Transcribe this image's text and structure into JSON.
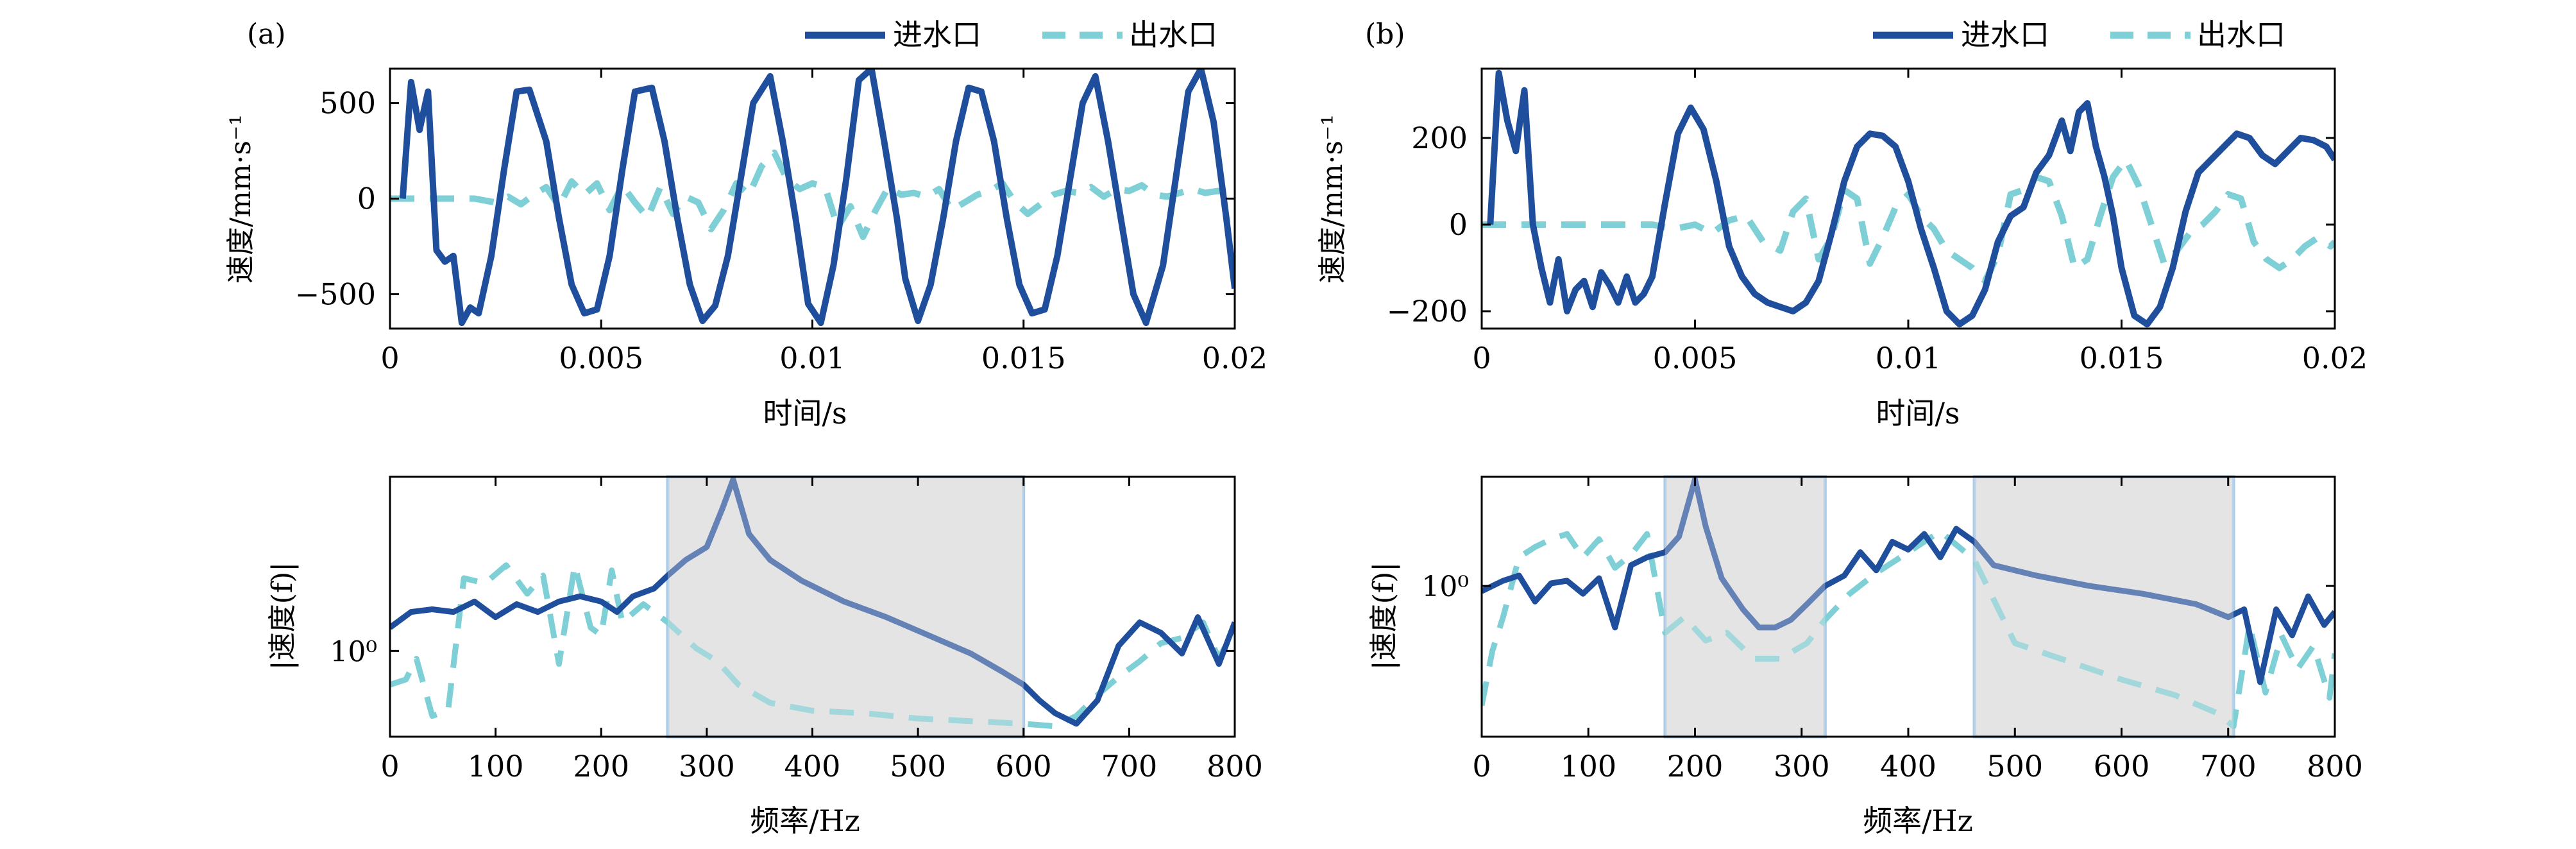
{
  "colors": {
    "inlet": "#1f4e9c",
    "outlet": "#7ecfd6",
    "shade": "#e4e4e4",
    "shade_edge": "#a9cbe9",
    "axes": "#000000"
  },
  "chart_data": [
    {
      "panel_label": "(a)",
      "type": "line",
      "xlabel": "时间/s",
      "ylabel": "速度/mm·s⁻¹",
      "xlim": [
        0,
        0.02
      ],
      "ylim": [
        -680,
        680
      ],
      "xticks": [
        0,
        0.005,
        0.01,
        0.015,
        0.02
      ],
      "xtick_labels": [
        "0",
        "0.005",
        "0.01",
        "0.015",
        "0.02"
      ],
      "yticks": [
        -500,
        0,
        500
      ],
      "ytick_labels": [
        "−500",
        "0",
        "500"
      ],
      "legend": {
        "placement": "top-right",
        "entries": [
          "进水口",
          "出水口"
        ]
      },
      "series": [
        {
          "name": "进水口",
          "style": "solid",
          "x": [
            0.0003,
            0.0005,
            0.0007,
            0.0009,
            0.0011,
            0.0013,
            0.0015,
            0.0017,
            0.0019,
            0.0021,
            0.0024,
            0.0027,
            0.003,
            0.0033,
            0.0037,
            0.004,
            0.0043,
            0.0046,
            0.0049,
            0.0052,
            0.0055,
            0.0058,
            0.0062,
            0.0065,
            0.0068,
            0.0071,
            0.0074,
            0.0077,
            0.008,
            0.0083,
            0.0086,
            0.009,
            0.0093,
            0.0096,
            0.0099,
            0.0102,
            0.0105,
            0.0108,
            0.0111,
            0.0114,
            0.0117,
            0.012,
            0.0122,
            0.0125,
            0.0128,
            0.0131,
            0.0134,
            0.0137,
            0.014,
            0.0143,
            0.0146,
            0.0149,
            0.0152,
            0.0155,
            0.0158,
            0.0161,
            0.0164,
            0.0167,
            0.017,
            0.0173,
            0.0176,
            0.0179,
            0.0183,
            0.0186,
            0.0189,
            0.0192,
            0.0195,
            0.0198,
            0.02
          ],
          "y": [
            0,
            610,
            360,
            560,
            -270,
            -330,
            -300,
            -650,
            -570,
            -600,
            -300,
            150,
            560,
            570,
            300,
            -100,
            -450,
            -600,
            -580,
            -300,
            150,
            560,
            580,
            300,
            -100,
            -450,
            -640,
            -560,
            -300,
            100,
            500,
            640,
            300,
            -100,
            -550,
            -650,
            -350,
            100,
            620,
            680,
            300,
            -100,
            -420,
            -640,
            -450,
            -100,
            300,
            580,
            560,
            300,
            -100,
            -450,
            -600,
            -580,
            -300,
            100,
            500,
            640,
            300,
            -100,
            -500,
            -650,
            -350,
            100,
            560,
            680,
            400,
            -100,
            -470
          ]
        },
        {
          "name": "出水口",
          "style": "dashed",
          "x": [
            0,
            0.001,
            0.002,
            0.0025,
            0.0028,
            0.0031,
            0.0034,
            0.0037,
            0.004,
            0.0043,
            0.0046,
            0.0049,
            0.0052,
            0.0055,
            0.0058,
            0.0061,
            0.0064,
            0.0067,
            0.007,
            0.0073,
            0.0076,
            0.0079,
            0.0082,
            0.0085,
            0.0088,
            0.0091,
            0.0094,
            0.0097,
            0.01,
            0.0103,
            0.0106,
            0.0109,
            0.0112,
            0.0115,
            0.0118,
            0.0121,
            0.0124,
            0.0127,
            0.013,
            0.0133,
            0.0136,
            0.0139,
            0.0142,
            0.0145,
            0.0148,
            0.0151,
            0.0154,
            0.0157,
            0.016,
            0.0163,
            0.0166,
            0.0169,
            0.0172,
            0.0175,
            0.0178,
            0.0181,
            0.0184,
            0.0187,
            0.019,
            0.0193,
            0.0196,
            0.02
          ],
          "y": [
            0,
            0,
            0,
            -20,
            10,
            -30,
            20,
            60,
            -40,
            90,
            20,
            80,
            -60,
            70,
            -20,
            -100,
            60,
            -80,
            10,
            -20,
            -160,
            -60,
            80,
            20,
            170,
            240,
            100,
            50,
            80,
            60,
            -150,
            -40,
            -200,
            -60,
            60,
            20,
            30,
            10,
            50,
            -60,
            -20,
            20,
            40,
            80,
            -20,
            -80,
            -30,
            20,
            40,
            30,
            60,
            10,
            50,
            40,
            70,
            20,
            10,
            30,
            50,
            30,
            40,
            30
          ]
        }
      ]
    },
    {
      "panel_label": "",
      "type": "line",
      "xlabel": "频率/Hz",
      "ylabel": "|速度(f)|",
      "xlim": [
        0,
        800
      ],
      "ylim": [
        0,
        1
      ],
      "xticks": [
        0,
        100,
        200,
        300,
        400,
        500,
        600,
        700,
        800
      ],
      "xtick_labels": [
        "0",
        "100",
        "200",
        "300",
        "400",
        "500",
        "600",
        "700",
        "800"
      ],
      "ytick_labels": [
        "10⁰"
      ],
      "ytick_positions": [
        0.33
      ],
      "shaded_ranges": [
        [
          263,
          600
        ]
      ],
      "series": [
        {
          "name": "进水口",
          "style": "solid",
          "x": [
            0,
            20,
            40,
            60,
            80,
            100,
            120,
            140,
            160,
            180,
            200,
            215,
            230,
            250,
            263,
            280,
            300,
            315,
            325,
            340,
            360,
            390,
            430,
            470,
            510,
            550,
            580,
            600,
            615,
            630,
            650,
            670,
            690,
            710,
            730,
            750,
            765,
            785,
            800
          ],
          "y": [
            0.42,
            0.48,
            0.49,
            0.48,
            0.52,
            0.46,
            0.51,
            0.48,
            0.52,
            0.54,
            0.52,
            0.48,
            0.54,
            0.57,
            0.62,
            0.68,
            0.73,
            0.88,
            0.99,
            0.78,
            0.68,
            0.6,
            0.52,
            0.46,
            0.39,
            0.32,
            0.25,
            0.2,
            0.14,
            0.09,
            0.05,
            0.14,
            0.35,
            0.44,
            0.4,
            0.32,
            0.46,
            0.28,
            0.44
          ]
        },
        {
          "name": "出水口",
          "style": "dashed",
          "x": [
            0,
            15,
            25,
            40,
            55,
            70,
            90,
            110,
            130,
            145,
            160,
            175,
            190,
            200,
            210,
            220,
            240,
            263,
            290,
            310,
            330,
            360,
            400,
            450,
            500,
            550,
            600,
            630,
            650,
            670,
            690,
            710,
            730,
            750,
            770,
            785,
            800
          ],
          "y": [
            0.2,
            0.22,
            0.3,
            0.08,
            0.1,
            0.61,
            0.59,
            0.66,
            0.55,
            0.62,
            0.28,
            0.66,
            0.42,
            0.39,
            0.64,
            0.44,
            0.51,
            0.44,
            0.34,
            0.29,
            0.2,
            0.13,
            0.1,
            0.09,
            0.07,
            0.06,
            0.05,
            0.04,
            0.08,
            0.16,
            0.23,
            0.29,
            0.36,
            0.38,
            0.44,
            0.3,
            0.42
          ]
        }
      ]
    },
    {
      "panel_label": "(b)",
      "type": "line",
      "xlabel": "时间/s",
      "ylabel": "速度/mm·s⁻¹",
      "xlim": [
        0,
        0.02
      ],
      "ylim": [
        -240,
        360
      ],
      "xticks": [
        0,
        0.005,
        0.01,
        0.015,
        0.02
      ],
      "xtick_labels": [
        "0",
        "0.005",
        "0.01",
        "0.015",
        "0.02"
      ],
      "yticks": [
        -200,
        0,
        200
      ],
      "ytick_labels": [
        "−200",
        "0",
        "200"
      ],
      "legend": {
        "placement": "top-right",
        "entries": [
          "进水口",
          "出水口"
        ]
      },
      "series": [
        {
          "name": "进水口",
          "style": "solid",
          "x": [
            0.0002,
            0.0004,
            0.0006,
            0.0008,
            0.001,
            0.0012,
            0.0014,
            0.0016,
            0.0018,
            0.002,
            0.0022,
            0.0024,
            0.0026,
            0.0028,
            0.003,
            0.0032,
            0.0034,
            0.0036,
            0.0038,
            0.004,
            0.0043,
            0.0046,
            0.0049,
            0.0052,
            0.0055,
            0.0058,
            0.0061,
            0.0064,
            0.0067,
            0.007,
            0.0073,
            0.0076,
            0.0079,
            0.0082,
            0.0085,
            0.0088,
            0.0091,
            0.0094,
            0.0097,
            0.01,
            0.0103,
            0.0106,
            0.0109,
            0.0112,
            0.0115,
            0.0118,
            0.0121,
            0.0124,
            0.0127,
            0.013,
            0.0133,
            0.0136,
            0.0138,
            0.014,
            0.0142,
            0.0144,
            0.0146,
            0.0148,
            0.015,
            0.0153,
            0.0156,
            0.0159,
            0.0162,
            0.0165,
            0.0168,
            0.0171,
            0.0174,
            0.0177,
            0.018,
            0.0183,
            0.0186,
            0.0189,
            0.0192,
            0.0195,
            0.0198,
            0.02
          ],
          "y": [
            0,
            350,
            240,
            170,
            310,
            0,
            -100,
            -180,
            -80,
            -200,
            -150,
            -130,
            -190,
            -110,
            -140,
            -180,
            -120,
            -180,
            -160,
            -120,
            50,
            210,
            270,
            220,
            100,
            -50,
            -120,
            -160,
            -180,
            -190,
            -200,
            -180,
            -130,
            -20,
            100,
            180,
            210,
            205,
            180,
            100,
            -10,
            -100,
            -200,
            -230,
            -210,
            -150,
            -40,
            20,
            40,
            120,
            160,
            240,
            170,
            260,
            280,
            180,
            110,
            20,
            -100,
            -210,
            -230,
            -190,
            -100,
            30,
            120,
            150,
            180,
            210,
            200,
            160,
            140,
            170,
            200,
            195,
            180,
            150
          ]
        },
        {
          "name": "出水口",
          "style": "dashed",
          "x": [
            0,
            0.001,
            0.002,
            0.003,
            0.004,
            0.0045,
            0.005,
            0.0054,
            0.0058,
            0.0062,
            0.0066,
            0.007,
            0.0073,
            0.0076,
            0.0079,
            0.0082,
            0.0085,
            0.0088,
            0.0091,
            0.0094,
            0.0097,
            0.01,
            0.0103,
            0.0106,
            0.0109,
            0.0112,
            0.0115,
            0.0118,
            0.0121,
            0.0124,
            0.0127,
            0.013,
            0.0133,
            0.0136,
            0.0139,
            0.0142,
            0.0145,
            0.0148,
            0.0151,
            0.0154,
            0.0157,
            0.016,
            0.0163,
            0.0166,
            0.0169,
            0.0172,
            0.0175,
            0.0178,
            0.0181,
            0.0184,
            0.0187,
            0.019,
            0.0193,
            0.0196,
            0.0199,
            0.02
          ],
          "y": [
            0,
            0,
            0,
            0,
            0,
            -10,
            0,
            -20,
            10,
            20,
            -40,
            -60,
            30,
            60,
            -80,
            -30,
            80,
            60,
            -90,
            -30,
            40,
            70,
            20,
            -10,
            -60,
            -80,
            -100,
            -130,
            -70,
            70,
            80,
            110,
            100,
            20,
            -100,
            -80,
            20,
            110,
            150,
            90,
            0,
            -90,
            -60,
            -20,
            0,
            30,
            70,
            60,
            -40,
            -80,
            -100,
            -80,
            -50,
            -30,
            -50,
            -40
          ]
        }
      ]
    },
    {
      "panel_label": "",
      "type": "line",
      "xlabel": "频率/Hz",
      "ylabel": "|速度(f)|",
      "xlim": [
        0,
        800
      ],
      "ylim": [
        0,
        1
      ],
      "xticks": [
        0,
        100,
        200,
        300,
        400,
        500,
        600,
        700,
        800
      ],
      "xtick_labels": [
        "0",
        "100",
        "200",
        "300",
        "400",
        "500",
        "600",
        "700",
        "800"
      ],
      "ytick_labels": [
        "10⁰"
      ],
      "ytick_positions": [
        0.58
      ],
      "shaded_ranges": [
        [
          172,
          322
        ],
        [
          462,
          705
        ]
      ],
      "series": [
        {
          "name": "进水口",
          "style": "solid",
          "x": [
            0,
            20,
            35,
            50,
            65,
            80,
            95,
            110,
            125,
            140,
            155,
            172,
            185,
            200,
            210,
            225,
            245,
            260,
            275,
            290,
            305,
            322,
            340,
            355,
            370,
            385,
            400,
            415,
            430,
            445,
            462,
            480,
            520,
            570,
            620,
            670,
            700,
            715,
            730,
            745,
            760,
            775,
            790,
            800
          ],
          "y": [
            0.56,
            0.6,
            0.62,
            0.52,
            0.59,
            0.6,
            0.55,
            0.61,
            0.42,
            0.66,
            0.69,
            0.71,
            0.77,
            0.99,
            0.81,
            0.61,
            0.49,
            0.42,
            0.42,
            0.45,
            0.51,
            0.58,
            0.62,
            0.71,
            0.64,
            0.75,
            0.72,
            0.78,
            0.69,
            0.8,
            0.75,
            0.66,
            0.62,
            0.58,
            0.55,
            0.51,
            0.46,
            0.49,
            0.21,
            0.49,
            0.39,
            0.54,
            0.43,
            0.48
          ]
        },
        {
          "name": "出水口",
          "style": "dashed",
          "x": [
            0,
            10,
            20,
            35,
            50,
            65,
            80,
            95,
            110,
            125,
            140,
            155,
            172,
            190,
            210,
            230,
            255,
            280,
            305,
            322,
            345,
            370,
            400,
            430,
            462,
            500,
            550,
            600,
            650,
            690,
            705,
            720,
            735,
            750,
            765,
            780,
            795,
            800
          ],
          "y": [
            0.12,
            0.33,
            0.46,
            0.69,
            0.73,
            0.76,
            0.78,
            0.69,
            0.76,
            0.65,
            0.7,
            0.78,
            0.4,
            0.46,
            0.37,
            0.4,
            0.3,
            0.3,
            0.36,
            0.45,
            0.55,
            0.63,
            0.71,
            0.79,
            0.68,
            0.36,
            0.29,
            0.22,
            0.16,
            0.09,
            0.04,
            0.43,
            0.17,
            0.39,
            0.26,
            0.35,
            0.15,
            0.32
          ]
        }
      ]
    }
  ]
}
